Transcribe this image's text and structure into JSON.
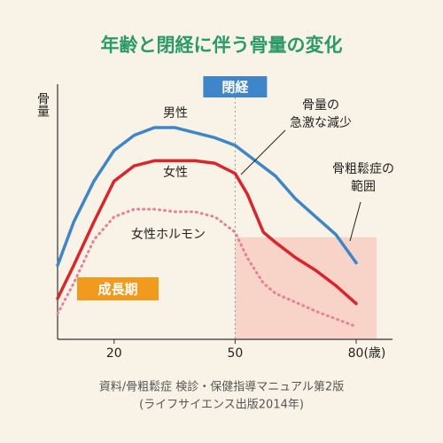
{
  "chart_data": {
    "type": "line",
    "title": "年齢と閉経に伴う骨量の変化",
    "y_label": "骨量",
    "xlim": [
      6,
      89
    ],
    "ylim": [
      0,
      100
    ],
    "xticks": [
      20,
      50,
      {
        "value": 80,
        "label": "80(歳)"
      }
    ],
    "series": [
      {
        "name": "男性",
        "color": "#3f86c8",
        "dashed": false,
        "x": [
          6,
          10,
          15,
          20,
          25,
          30,
          35,
          40,
          45,
          50,
          55,
          60,
          65,
          70,
          75,
          80
        ],
        "values": [
          29,
          46,
          62,
          74,
          80,
          83,
          83,
          81,
          79,
          76,
          70,
          64,
          55,
          48,
          41,
          30
        ]
      },
      {
        "name": "女性",
        "color": "#d8262c",
        "dashed": false,
        "x": [
          6,
          10,
          15,
          20,
          25,
          30,
          35,
          40,
          45,
          50,
          53,
          57,
          60,
          65,
          70,
          75,
          80
        ],
        "values": [
          16,
          29,
          46,
          62,
          68,
          70,
          70,
          70,
          69,
          65,
          57,
          42,
          38,
          32,
          27,
          21,
          14
        ]
      },
      {
        "name": "女性ホルモン",
        "color": "#e77f96",
        "dashed": true,
        "x": [
          6,
          10,
          15,
          20,
          25,
          30,
          35,
          40,
          45,
          50,
          53,
          57,
          60,
          70,
          80
        ],
        "values": [
          10,
          22,
          39,
          48,
          51,
          51,
          50,
          50,
          48,
          42,
          32,
          22,
          18,
          11,
          5
        ]
      }
    ],
    "menopause": {
      "x": 50,
      "label": "閉経"
    },
    "osteoporosis": {
      "threshold": 40,
      "label": [
        "骨粗鬆症の",
        "範囲"
      ]
    },
    "growth_label": "成長期",
    "decline_label": [
      "骨量の",
      "急激な減少"
    ],
    "source": [
      "資料/骨粗鬆症 検診・保健指導マニュアル第2版",
      "(ライフサイエンス出版2014年)"
    ]
  }
}
